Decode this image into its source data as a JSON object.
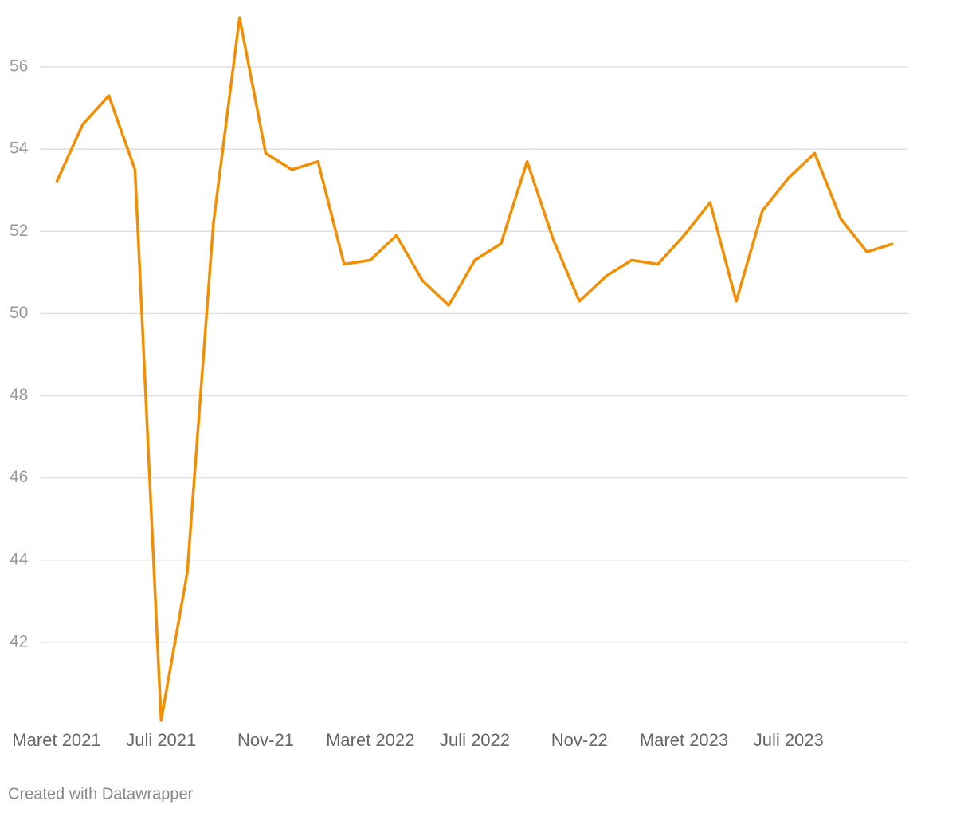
{
  "chart_data": {
    "type": "line",
    "categories": [
      "Maret 2021",
      null,
      null,
      null,
      "Juli 2021",
      null,
      null,
      null,
      "Nov-21",
      null,
      null,
      null,
      "Maret 2022",
      null,
      null,
      null,
      "Juli 2022",
      null,
      null,
      null,
      "Nov-22",
      null,
      null,
      null,
      "Maret 2023",
      null,
      null,
      null,
      "Juli 2023",
      null,
      null,
      null,
      null
    ],
    "series": [
      {
        "color": "#f28e00",
        "values": [
          53.2,
          54.6,
          55.3,
          53.5,
          40.1,
          43.7,
          52.2,
          57.2,
          53.9,
          53.5,
          53.7,
          51.2,
          51.3,
          51.9,
          50.8,
          50.2,
          51.3,
          51.7,
          53.7,
          51.8,
          50.3,
          50.9,
          51.3,
          51.2,
          51.9,
          52.7,
          50.3,
          52.5,
          53.3,
          53.9,
          52.3,
          51.5,
          51.7
        ]
      }
    ],
    "ylim": [
      40,
      57.4
    ],
    "yticks": [
      42,
      44,
      46,
      48,
      50,
      52,
      54,
      56
    ],
    "grid": true,
    "footer": "Created with Datawrapper"
  }
}
